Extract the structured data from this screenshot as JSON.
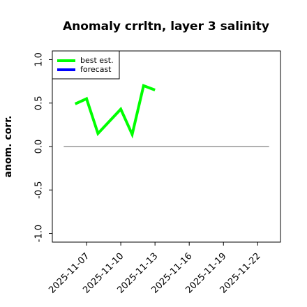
{
  "chart_data": {
    "type": "line",
    "title": "Anomaly crrltn, layer 3 salinity",
    "y_label": "anom. corr.",
    "x": [
      "2025-11-06",
      "2025-11-07",
      "2025-11-08",
      "2025-11-09",
      "2025-11-10",
      "2025-11-11",
      "2025-11-12",
      "2025-11-13"
    ],
    "series": [
      {
        "name": "best est.",
        "color": "#00ff00",
        "values": [
          0.49,
          0.55,
          0.15,
          0.29,
          0.43,
          0.14,
          0.7,
          0.65
        ]
      },
      {
        "name": "forecast",
        "color": "#0000ff",
        "values": [
          null,
          null,
          null,
          null,
          null,
          null,
          null,
          null
        ]
      }
    ],
    "xlim": [
      "2025-11-04",
      "2025-11-24"
    ],
    "xticks": [
      "2025-11-07",
      "2025-11-10",
      "2025-11-13",
      "2025-11-16",
      "2025-11-19",
      "2025-11-22"
    ],
    "xtick_highlight": "2025-11-13",
    "xtick_highlight_color": "#228b22",
    "ylim": [
      -1.1,
      1.1
    ],
    "yticks": [
      {
        "value": -1,
        "label": "-1.0"
      },
      {
        "value": -0.5,
        "label": "-0.5"
      },
      {
        "value": 0,
        "label": "0.0"
      },
      {
        "value": 0.5,
        "label": "0.5"
      },
      {
        "value": 1,
        "label": "1.0"
      }
    ],
    "reference_line": {
      "y": 0,
      "x": [
        "2025-11-05",
        "2025-11-23"
      ],
      "color": "#808080"
    },
    "legend": "upper left"
  }
}
